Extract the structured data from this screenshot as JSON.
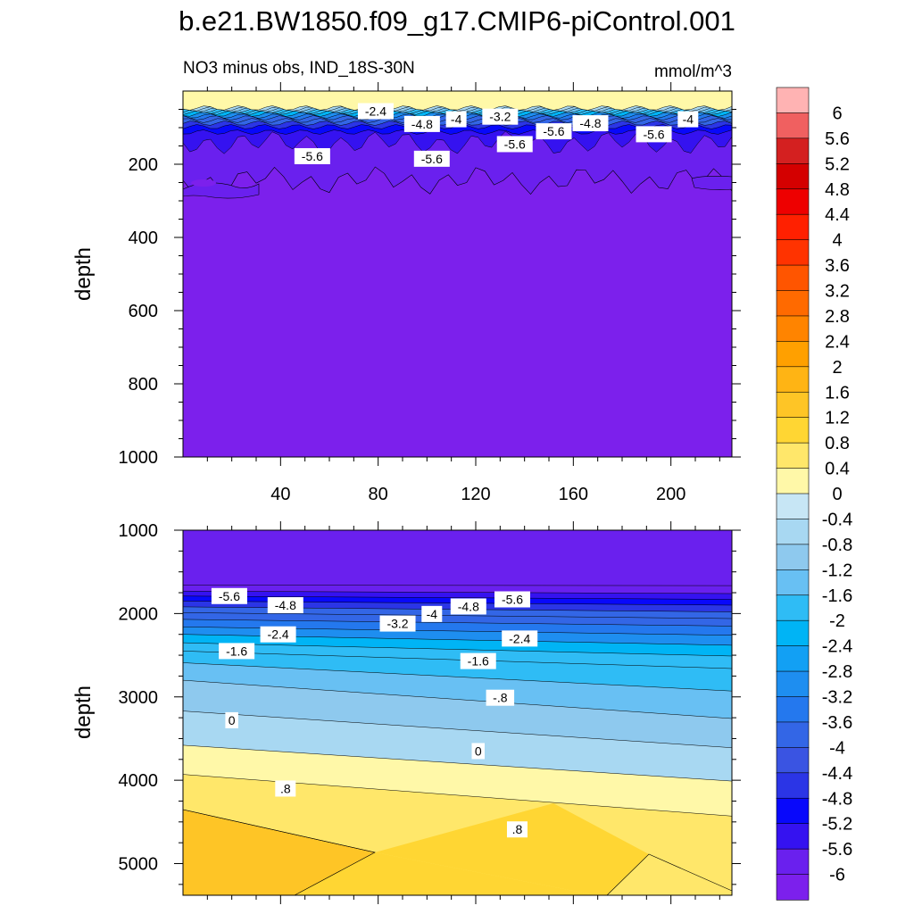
{
  "chart_data": {
    "type": "contour",
    "title": "b.e21.BW1850.f09_g17.CMIP6-piControl.001",
    "subtitle_left": "NO3 minus obs, IND_18S-30N",
    "units": "mmol/m^3",
    "panels": [
      {
        "name": "upper",
        "ylabel": "depth",
        "xlim": [
          0,
          225
        ],
        "ylim": [
          1000,
          0
        ],
        "xticks": [
          "40",
          "80",
          "120",
          "160",
          "200"
        ],
        "yticks": [
          "200",
          "400",
          "600",
          "800",
          "1000"
        ],
        "contour_labels": [
          {
            "text": "-2.4",
            "x": 79,
            "y": 55
          },
          {
            "text": "-4.8",
            "x": 98,
            "y": 90
          },
          {
            "text": "-4",
            "x": 112,
            "y": 77
          },
          {
            "text": "-3.2",
            "x": 130,
            "y": 70
          },
          {
            "text": "-5.6",
            "x": 152,
            "y": 110
          },
          {
            "text": "-4.8",
            "x": 167,
            "y": 88
          },
          {
            "text": "-4",
            "x": 207,
            "y": 77
          },
          {
            "text": "-5.6",
            "x": 193,
            "y": 118
          },
          {
            "text": "-5.6",
            "x": 53,
            "y": 178
          },
          {
            "text": "-5.6",
            "x": 102,
            "y": 185
          },
          {
            "text": "-5.6",
            "x": 136,
            "y": 145
          }
        ]
      },
      {
        "name": "lower",
        "ylabel": "depth",
        "xlim": [
          0,
          225
        ],
        "ylim": [
          5380,
          1000
        ],
        "yticks": [
          "1000",
          "2000",
          "3000",
          "4000",
          "5000"
        ],
        "contour_labels": [
          {
            "text": "-5.6",
            "x": 19,
            "y": 1790
          },
          {
            "text": "-4.8",
            "x": 42,
            "y": 1900
          },
          {
            "text": "-4",
            "x": 102,
            "y": 2005
          },
          {
            "text": "-4.8",
            "x": 117,
            "y": 1915
          },
          {
            "text": "-5.6",
            "x": 135,
            "y": 1830
          },
          {
            "text": "-3.2",
            "x": 88,
            "y": 2120
          },
          {
            "text": "-2.4",
            "x": 39,
            "y": 2250
          },
          {
            "text": "-2.4",
            "x": 138,
            "y": 2300
          },
          {
            "text": "-1.6",
            "x": 22,
            "y": 2450
          },
          {
            "text": "-1.6",
            "x": 121,
            "y": 2570
          },
          {
            "text": "-.8",
            "x": 130,
            "y": 3010
          },
          {
            "text": "0",
            "x": 20,
            "y": 3280
          },
          {
            "text": "0",
            "x": 121,
            "y": 3650
          },
          {
            "text": ".8",
            "x": 42,
            "y": 4100
          },
          {
            "text": ".8",
            "x": 137,
            "y": 4590
          }
        ]
      }
    ],
    "colorbar": {
      "levels": [
        "6",
        "5.6",
        "5.2",
        "4.8",
        "4.4",
        "4",
        "3.6",
        "3.2",
        "2.8",
        "2.4",
        "2",
        "1.6",
        "1.2",
        "0.8",
        "0.4",
        "0",
        "-0.4",
        "-0.8",
        "-1.2",
        "-1.6",
        "-2",
        "-2.4",
        "-2.8",
        "-3.2",
        "-3.6",
        "-4",
        "-4.4",
        "-4.8",
        "-5.2",
        "-5.6",
        "-6"
      ],
      "colors": [
        "#ffb3b3",
        "#f06060",
        "#d42020",
        "#d40000",
        "#ee0000",
        "#ff2000",
        "#ff3300",
        "#ff5500",
        "#ff6a00",
        "#ff8400",
        "#ffa000",
        "#ffb414",
        "#fec526",
        "#ffd633",
        "#ffe76a",
        "#fff8a8",
        "#c7e6f5",
        "#a8d8f2",
        "#8ec9ee",
        "#68c0f3",
        "#2fbcf5",
        "#00b4f5",
        "#12a0f4",
        "#1e8ef0",
        "#2478ee",
        "#3366e6",
        "#3a54e2",
        "#2b35e6",
        "#0808fb",
        "#3512f0",
        "#6a20ee",
        "#7c20ec"
      ]
    }
  }
}
